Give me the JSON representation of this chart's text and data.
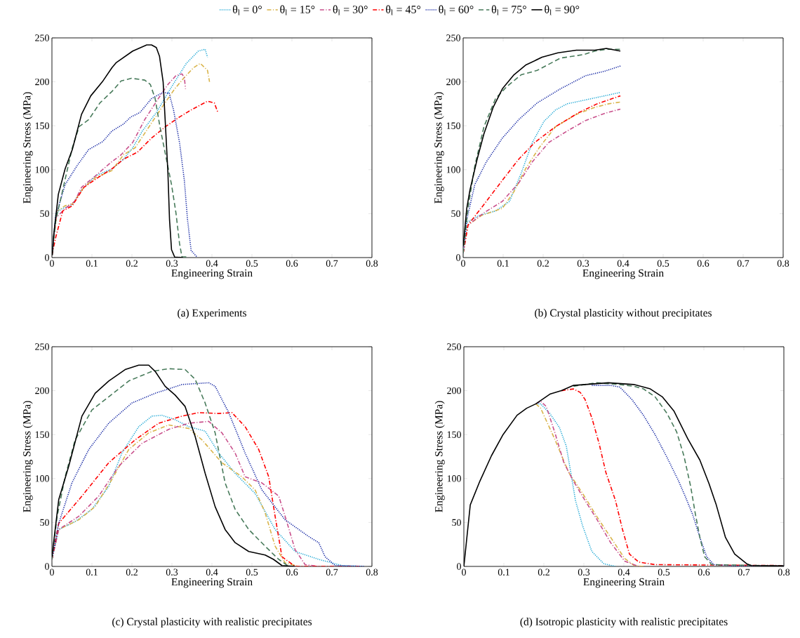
{
  "chart_data": [
    {
      "type": "line",
      "xlabel": "Engineering Strain",
      "ylabel": "Engineering Stress (MPa)",
      "annotations": [
        "(a) Experiments"
      ],
      "legend": "top",
      "xlim": [
        0,
        0.8
      ],
      "ylim": [
        0,
        250
      ],
      "xticks": [
        0,
        0.1,
        0.2,
        0.3,
        0.4,
        0.5,
        0.6,
        0.7,
        0.8
      ],
      "yticks": [
        0,
        50,
        100,
        150,
        200,
        250
      ],
      "series": [
        {
          "name": "θ$_{l}$ = 0°",
          "color": "#1ba6d4",
          "line_style": "dotted",
          "x": [
            0,
            0.01,
            0.027,
            0.051,
            0.074,
            0.109,
            0.15,
            0.179,
            0.202,
            0.226,
            0.261,
            0.296,
            0.336,
            0.366,
            0.383,
            0.389
          ],
          "values": [
            3,
            51,
            56,
            60,
            77,
            93,
            101,
            112,
            125,
            144,
            165,
            192,
            221,
            235,
            237,
            228
          ]
        },
        {
          "name": "θ$_{l}$ = 15°",
          "color": "#d9b44a",
          "line_style": "dashdot",
          "x": [
            0,
            0.013,
            0.033,
            0.051,
            0.08,
            0.109,
            0.15,
            0.179,
            0.208,
            0.243,
            0.278,
            0.307,
            0.331,
            0.354,
            0.371,
            0.389,
            0.394
          ],
          "values": [
            3,
            53,
            59,
            61,
            80,
            91,
            99,
            117,
            125,
            149,
            173,
            192,
            205,
            216,
            221,
            213,
            200
          ]
        },
        {
          "name": "θ$_{l}$ = 30°",
          "color": "#c9508c",
          "line_style": "dashdot",
          "x": [
            0,
            0.01,
            0.033,
            0.057,
            0.074,
            0.109,
            0.144,
            0.173,
            0.202,
            0.232,
            0.266,
            0.29,
            0.31,
            0.325,
            0.331,
            0.334
          ],
          "values": [
            3,
            45,
            56,
            64,
            80,
            93,
            107,
            117,
            131,
            157,
            181,
            197,
            207,
            209,
            205,
            192
          ]
        },
        {
          "name": "θ$_{l}$ = 45°",
          "color": "#ff0000",
          "line_style": "dashdot",
          "x": [
            0,
            0.01,
            0.027,
            0.051,
            0.08,
            0.115,
            0.15,
            0.179,
            0.214,
            0.249,
            0.284,
            0.319,
            0.348,
            0.389,
            0.406,
            0.415
          ],
          "values": [
            3,
            24,
            53,
            59,
            80,
            91,
            101,
            112,
            120,
            136,
            149,
            160,
            168,
            178,
            176,
            165
          ]
        },
        {
          "name": "θ$_{l}$ = 60°",
          "color": "#0b1ea0",
          "line_style": "dotted",
          "x": [
            0,
            0.01,
            0.033,
            0.062,
            0.092,
            0.127,
            0.15,
            0.179,
            0.197,
            0.22,
            0.249,
            0.278,
            0.293,
            0.304,
            0.319,
            0.331,
            0.339,
            0.348,
            0.363
          ],
          "values": [
            3,
            48,
            83,
            104,
            123,
            132,
            144,
            152,
            160,
            165,
            181,
            188,
            187,
            168,
            131,
            88,
            43,
            8,
            0.5
          ]
        },
        {
          "name": "θ$_{l}$ = 75°",
          "color": "#477a5a",
          "line_style": "dashed",
          "x": [
            0,
            0.01,
            0.027,
            0.051,
            0.068,
            0.092,
            0.12,
            0.15,
            0.173,
            0.199,
            0.232,
            0.246,
            0.258,
            0.27,
            0.284,
            0.299,
            0.31,
            0.319,
            0.325,
            0.342
          ],
          "values": [
            3,
            43,
            77,
            125,
            149,
            157,
            176,
            189,
            201,
            204,
            202,
            197,
            181,
            149,
            117,
            83,
            51,
            16,
            1,
            0.5
          ]
        },
        {
          "name": "θ$_{l}$ = 90°",
          "color": "#000000",
          "line_style": "solid",
          "x": [
            0.001,
            0.004,
            0.016,
            0.033,
            0.051,
            0.074,
            0.097,
            0.126,
            0.15,
            0.161,
            0.202,
            0.237,
            0.249,
            0.261,
            0.269,
            0.278,
            0.284,
            0.29,
            0.294,
            0.299,
            0.307,
            0.328
          ],
          "values": [
            2.7,
            24,
            72,
            101,
            123,
            163,
            184,
            200,
            216,
            222,
            235,
            242,
            242,
            239,
            229,
            200,
            149,
            96,
            43,
            9,
            0.5,
            0
          ]
        }
      ]
    },
    {
      "type": "line",
      "xlabel": "Engineering Strain",
      "ylabel": "Engineering Stress (MPa)",
      "annotations": [
        "(b) Crystal plasticity without precipitates"
      ],
      "xlim": [
        0,
        0.8
      ],
      "ylim": [
        0,
        250
      ],
      "xticks": [
        0,
        0.1,
        0.2,
        0.3,
        0.4,
        0.5,
        0.6,
        0.7,
        0.8
      ],
      "yticks": [
        0,
        50,
        100,
        150,
        200,
        250
      ],
      "series": [
        {
          "color": "#1ba6d4",
          "line_style": "dotted",
          "x": [
            0,
            0.009,
            0.04,
            0.081,
            0.116,
            0.145,
            0.173,
            0.202,
            0.231,
            0.26,
            0.312,
            0.353,
            0.393
          ],
          "values": [
            5,
            40,
            48,
            53,
            64,
            96,
            131,
            155,
            168,
            175,
            180,
            184,
            188
          ]
        },
        {
          "color": "#d9b44a",
          "line_style": "dashdot",
          "x": [
            0,
            0.012,
            0.046,
            0.098,
            0.127,
            0.156,
            0.19,
            0.231,
            0.283,
            0.329,
            0.364,
            0.393
          ],
          "values": [
            5,
            37,
            48,
            56,
            75,
            101,
            125,
            149,
            163,
            171,
            175,
            177
          ]
        },
        {
          "color": "#c9508c",
          "line_style": "dashdot",
          "x": [
            0,
            0.012,
            0.052,
            0.098,
            0.139,
            0.173,
            0.214,
            0.26,
            0.306,
            0.353,
            0.393
          ],
          "values": [
            5,
            37,
            51,
            64,
            85,
            109,
            131,
            144,
            156,
            164,
            169
          ]
        },
        {
          "color": "#ff0000",
          "line_style": "dashdot",
          "x": [
            0,
            0.012,
            0.058,
            0.098,
            0.139,
            0.179,
            0.231,
            0.289,
            0.335,
            0.393
          ],
          "values": [
            5,
            37,
            64,
            88,
            112,
            131,
            149,
            165,
            175,
            184
          ]
        },
        {
          "color": "#0b1ea0",
          "line_style": "dotted",
          "x": [
            0,
            0.009,
            0.029,
            0.058,
            0.098,
            0.139,
            0.185,
            0.243,
            0.306,
            0.353,
            0.393
          ],
          "values": [
            5,
            43,
            83,
            109,
            136,
            157,
            176,
            192,
            207,
            212,
            218
          ]
        },
        {
          "color": "#477a5a",
          "line_style": "dashed",
          "x": [
            0,
            0.012,
            0.029,
            0.052,
            0.081,
            0.11,
            0.145,
            0.185,
            0.243,
            0.301,
            0.329,
            0.358,
            0.393
          ],
          "values": [
            5,
            56,
            104,
            149,
            181,
            195,
            208,
            213,
            227,
            231,
            235,
            237,
            237
          ]
        },
        {
          "color": "#000000",
          "line_style": "solid",
          "x": [
            0,
            0.009,
            0.017,
            0.035,
            0.052,
            0.075,
            0.098,
            0.127,
            0.156,
            0.197,
            0.237,
            0.283,
            0.329,
            0.358,
            0.393
          ],
          "values": [
            13,
            56,
            77,
            112,
            141,
            171,
            192,
            208,
            219,
            228,
            233,
            236,
            236,
            238,
            235
          ]
        }
      ]
    },
    {
      "type": "line",
      "xlabel": "Engineering Strain",
      "ylabel": "Engineering Stress (MPa)",
      "annotations": [
        "(c) Crystal plasticity with realistic precipitates"
      ],
      "xlim": [
        0,
        0.8
      ],
      "ylim": [
        0,
        250
      ],
      "xticks": [
        0,
        0.1,
        0.2,
        0.3,
        0.4,
        0.5,
        0.6,
        0.7,
        0.8
      ],
      "yticks": [
        0,
        50,
        100,
        150,
        200,
        250
      ],
      "series": [
        {
          "color": "#1ba6d4",
          "line_style": "dotted",
          "x": [
            0,
            0.017,
            0.058,
            0.1,
            0.142,
            0.175,
            0.217,
            0.25,
            0.275,
            0.308,
            0.342,
            0.383,
            0.417,
            0.458,
            0.508,
            0.558,
            0.608,
            0.667,
            0.725,
            0.78
          ],
          "values": [
            8,
            42,
            51,
            65,
            91,
            129,
            159,
            171,
            172,
            167,
            159,
            154,
            129,
            106,
            83,
            42,
            17,
            8,
            1,
            0
          ]
        },
        {
          "color": "#d9b44a",
          "line_style": "dashdot",
          "x": [
            0,
            0.017,
            0.067,
            0.108,
            0.15,
            0.192,
            0.242,
            0.292,
            0.342,
            0.375,
            0.425,
            0.475,
            0.508,
            0.533,
            0.558,
            0.583,
            0.617
          ],
          "values": [
            8,
            42,
            53,
            68,
            99,
            133,
            152,
            161,
            157,
            144,
            118,
            102,
            87,
            61,
            23,
            4,
            0
          ]
        },
        {
          "color": "#c9508c",
          "line_style": "dashdot",
          "x": [
            0,
            0.017,
            0.067,
            0.117,
            0.167,
            0.225,
            0.292,
            0.342,
            0.392,
            0.425,
            0.458,
            0.483,
            0.525,
            0.567,
            0.583,
            0.608,
            0.633,
            0.667
          ],
          "values": [
            8,
            42,
            57,
            80,
            114,
            140,
            156,
            163,
            165,
            152,
            129,
            102,
            95,
            80,
            57,
            19,
            2,
            0
          ]
        },
        {
          "color": "#ff0000",
          "line_style": "dashdot",
          "x": [
            0,
            0.017,
            0.075,
            0.142,
            0.208,
            0.267,
            0.325,
            0.367,
            0.417,
            0.45,
            0.483,
            0.517,
            0.542,
            0.558,
            0.575,
            0.608,
            0.78
          ],
          "values": [
            8,
            49,
            80,
            118,
            144,
            163,
            171,
            175,
            174,
            175,
            159,
            133,
            102,
            57,
            11,
            0,
            0
          ]
        },
        {
          "color": "#0b1ea0",
          "line_style": "dotted",
          "x": [
            0,
            0.017,
            0.05,
            0.092,
            0.142,
            0.2,
            0.258,
            0.325,
            0.392,
            0.408,
            0.442,
            0.483,
            0.525,
            0.583,
            0.642,
            0.667,
            0.683,
            0.708,
            0.78
          ],
          "values": [
            8,
            49,
            95,
            133,
            163,
            186,
            197,
            207,
            209,
            205,
            175,
            129,
            87,
            53,
            34,
            27,
            11,
            1,
            0
          ]
        },
        {
          "color": "#477a5a",
          "line_style": "dashed",
          "x": [
            0,
            0.013,
            0.033,
            0.058,
            0.1,
            0.142,
            0.192,
            0.25,
            0.292,
            0.333,
            0.358,
            0.383,
            0.408,
            0.433,
            0.458,
            0.492,
            0.533,
            0.567,
            0.592
          ],
          "values": [
            8,
            57,
            102,
            144,
            178,
            193,
            211,
            222,
            225,
            224,
            213,
            186,
            152,
            95,
            65,
            42,
            23,
            8,
            0
          ]
        },
        {
          "color": "#000000",
          "line_style": "solid",
          "x": [
            0,
            0.017,
            0.042,
            0.075,
            0.108,
            0.142,
            0.183,
            0.217,
            0.242,
            0.258,
            0.283,
            0.308,
            0.333,
            0.358,
            0.383,
            0.408,
            0.433,
            0.458,
            0.492,
            0.533,
            0.554,
            0.575,
            0.608
          ],
          "values": [
            11,
            76,
            114,
            171,
            197,
            211,
            224,
            229,
            229,
            222,
            205,
            195,
            182,
            148,
            106,
            68,
            42,
            27,
            17,
            13,
            8,
            1,
            0
          ]
        }
      ]
    },
    {
      "type": "line",
      "xlabel": "Engineering Strain",
      "ylabel": "Engineering Stress (MPa)",
      "annotations": [
        "(d) Isotropic plasticity with realistic precipitates"
      ],
      "xlim": [
        0,
        0.8
      ],
      "ylim": [
        0,
        250
      ],
      "xticks": [
        0,
        0.1,
        0.2,
        0.3,
        0.4,
        0.5,
        0.6,
        0.7,
        0.8
      ],
      "yticks": [
        0,
        50,
        100,
        150,
        200,
        250
      ],
      "series": [
        {
          "color": "#1ba6d4",
          "line_style": "dotted",
          "x": [
            0.18,
            0.192,
            0.215,
            0.239,
            0.256,
            0.268,
            0.279,
            0.297,
            0.32,
            0.35,
            0.379
          ],
          "values": [
            185,
            185,
            174,
            158,
            137,
            105,
            75,
            46,
            17,
            3,
            0
          ]
        },
        {
          "color": "#d9b44a",
          "line_style": "dashdot",
          "x": [
            0.18,
            0.192,
            0.227,
            0.262,
            0.297,
            0.332,
            0.367,
            0.402,
            0.426,
            0.449
          ],
          "values": [
            185,
            180,
            145,
            107,
            83,
            57,
            33,
            9,
            1,
            0
          ]
        },
        {
          "color": "#c9508c",
          "line_style": "dashdot",
          "x": [
            0.18,
            0.192,
            0.206,
            0.227,
            0.25,
            0.274,
            0.303,
            0.332,
            0.367,
            0.402,
            0.437
          ],
          "values": [
            185,
            188,
            182,
            153,
            118,
            97,
            75,
            54,
            27,
            6,
            0
          ]
        },
        {
          "color": "#ff0000",
          "line_style": "dashdot",
          "x": [
            0.244,
            0.274,
            0.291,
            0.303,
            0.32,
            0.338,
            0.355,
            0.379,
            0.396,
            0.414,
            0.437,
            0.478,
            0.8
          ],
          "values": [
            200,
            202,
            198,
            190,
            169,
            140,
            107,
            75,
            43,
            14,
            5,
            2,
            1
          ]
        },
        {
          "color": "#0b1ea0",
          "line_style": "dotted",
          "x": [
            0.32,
            0.367,
            0.39,
            0.42,
            0.449,
            0.478,
            0.508,
            0.537,
            0.555,
            0.572,
            0.59,
            0.607,
            0.625,
            0.684,
            0.8
          ],
          "values": [
            206,
            206,
            204,
            190,
            172,
            150,
            124,
            97,
            78,
            59,
            33,
            11,
            2,
            0.5,
            0.5
          ]
        },
        {
          "color": "#477a5a",
          "line_style": "dashed",
          "x": [
            0.274,
            0.332,
            0.39,
            0.425,
            0.449,
            0.478,
            0.508,
            0.532,
            0.55,
            0.567,
            0.579,
            0.59,
            0.602,
            0.62,
            0.8
          ],
          "values": [
            205,
            209,
            207,
            205,
            202,
            193,
            174,
            153,
            126,
            91,
            59,
            33,
            11,
            2,
            0.5
          ]
        },
        {
          "color": "#000000",
          "line_style": "solid",
          "x": [
            0,
            0.016,
            0.04,
            0.069,
            0.098,
            0.133,
            0.157,
            0.18,
            0.215,
            0.244,
            0.274,
            0.332,
            0.361,
            0.425,
            0.466,
            0.496,
            0.525,
            0.56,
            0.59,
            0.613,
            0.631,
            0.654,
            0.677,
            0.707,
            0.718,
            0.8
          ],
          "values": [
            0,
            70,
            97,
            126,
            150,
            172,
            180,
            185,
            196,
            200,
            206,
            208,
            209,
            207,
            202,
            193,
            177,
            145,
            121,
            94,
            70,
            33,
            14,
            3,
            1,
            0.5
          ]
        }
      ]
    }
  ]
}
